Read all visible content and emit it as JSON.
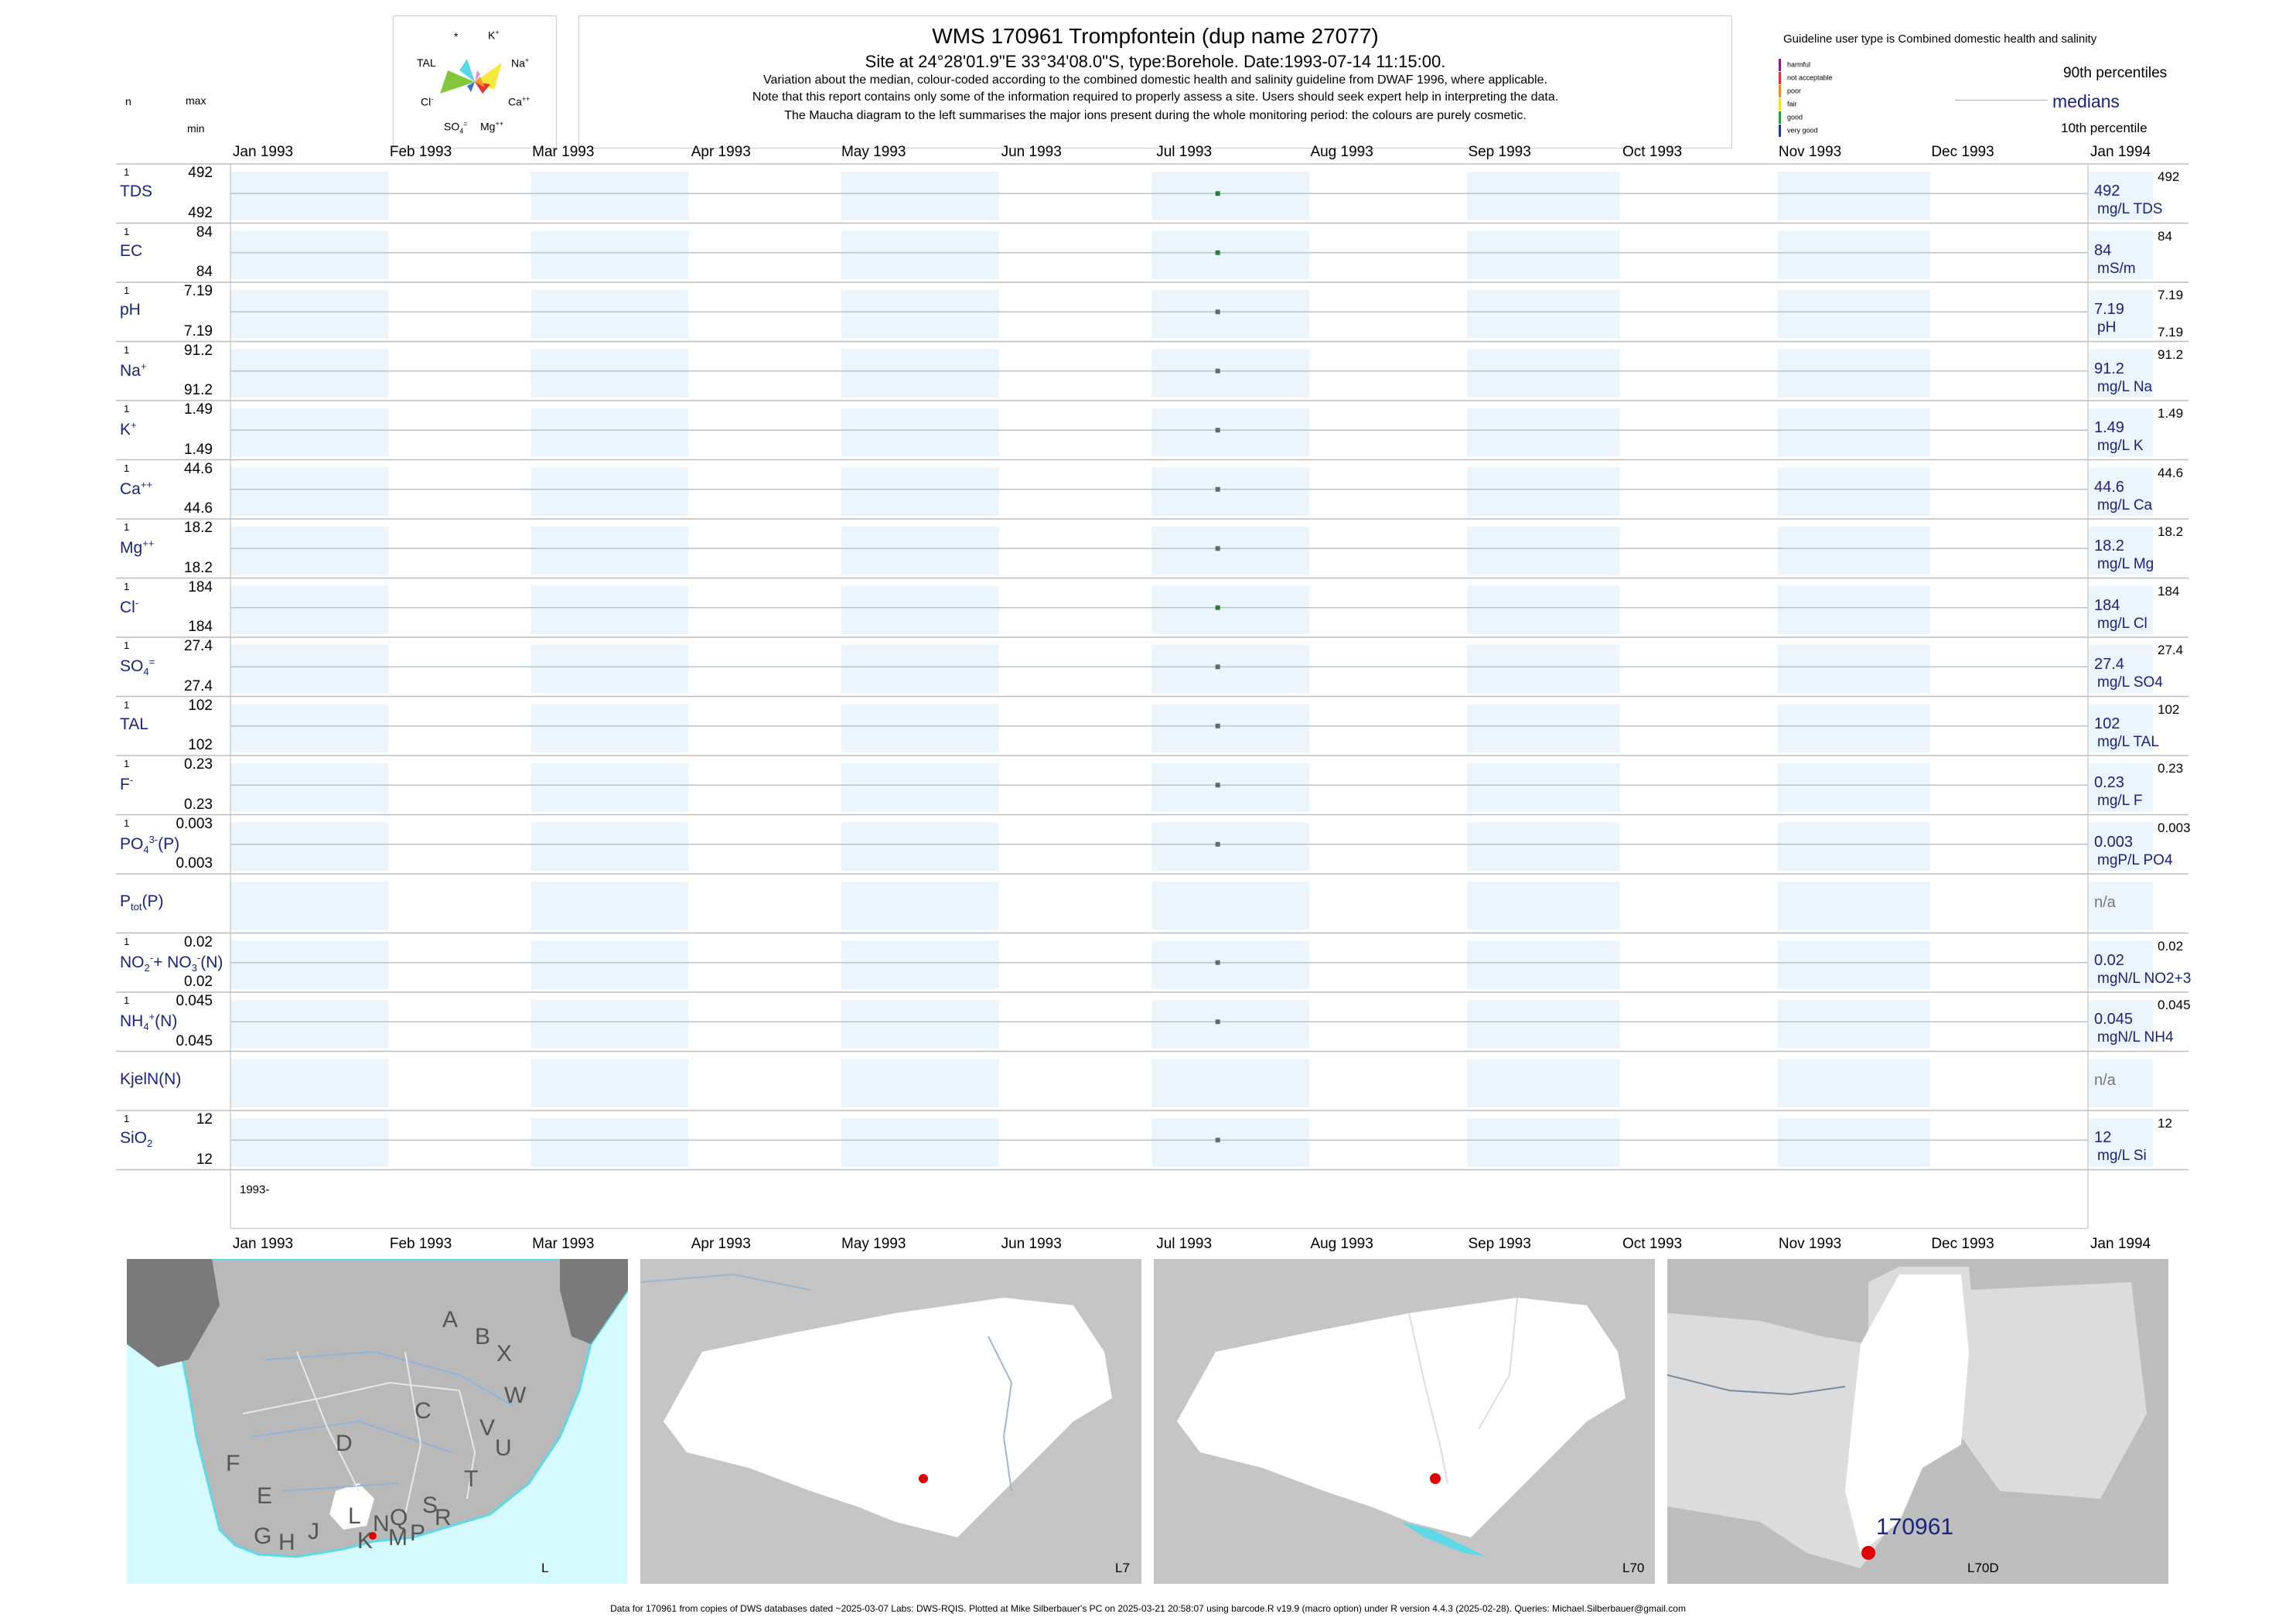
{
  "header": {
    "title": "WMS 170961  Trompfontein (dup name 27077)",
    "subtitle": "Site at 24°28'01.9\"E 33°34'08.0\"S, type:Borehole. Date:1993-07-14 11:15:00.",
    "note1": "Variation about the median,  colour-coded according to the combined domestic health and salinity guideline from DWAF 1996, where applicable.",
    "note2": "Note that this report contains only some of the information required to properly assess a site. Users should seek expert help in interpreting the data.",
    "note3": "The Maucha diagram to the left summarises the major ions present during the whole monitoring period: the colours are purely cosmetic."
  },
  "maucha": {
    "labels": {
      "top_left": "*",
      "k": "K",
      "k_sup": "+",
      "tal": "TAL",
      "na": "Na",
      "na_sup": "+",
      "cl": "Cl",
      "cl_sup": "-",
      "ca": "Ca",
      "ca_sup": "++",
      "so4": "SO",
      "so4_sub": "4",
      "so4_sup": "=",
      "mg": "Mg",
      "mg_sup": "++"
    },
    "colors": {
      "yellow": "#f5ea3b",
      "cyan": "#58d8e8",
      "green": "#84c63c",
      "orange": "#f39c2c",
      "red": "#e8322c",
      "blue": "#3b6fd8",
      "pink": "#ea8ad0"
    }
  },
  "legend": {
    "guideline_title": "Guideline user type is Combined domestic health and salinity",
    "categories": [
      {
        "label": "harmful",
        "color": "#8e1b8e"
      },
      {
        "label": "not acceptable",
        "color": "#e83030"
      },
      {
        "label": "poor",
        "color": "#f08a24"
      },
      {
        "label": "fair",
        "color": "#f4e22a"
      },
      {
        "label": "good",
        "color": "#2e9a40"
      },
      {
        "label": "very good",
        "color": "#1f3a9a"
      }
    ],
    "pct90": "90th percentiles",
    "medians": "medians",
    "pct10": "10th percentile"
  },
  "left_header": {
    "n": "n",
    "max": "max",
    "min": "min"
  },
  "chart_data": {
    "type": "scatter",
    "x_range": [
      "1993-01-01",
      "1994-01-01"
    ],
    "x_ticks": [
      "Jan 1993",
      "Feb 1993",
      "Mar 1993",
      "Apr 1993",
      "May 1993",
      "Jun 1993",
      "Jul 1993",
      "Aug 1993",
      "Sep 1993",
      "Oct 1993",
      "Nov 1993",
      "Dec 1993",
      "Jan 1994"
    ],
    "x_year_label": "1993-",
    "sample_date": "1993-07-14",
    "point_colors": {
      "good": "#2e7d32",
      "grey": "#5f6b73"
    },
    "rows": [
      {
        "key": "TDS",
        "label": "TDS",
        "sup": "",
        "sub": "",
        "n": "1",
        "max": "492",
        "min": "492",
        "median": "492",
        "unit": "mg/L TDS",
        "r_max": "492",
        "r_min": "",
        "color": "good"
      },
      {
        "key": "EC",
        "label": "EC",
        "sup": "",
        "sub": "",
        "n": "1",
        "max": "84",
        "min": "84",
        "median": "84",
        "unit": "mS/m",
        "r_max": "84",
        "r_min": "",
        "color": "good"
      },
      {
        "key": "pH",
        "label": "pH",
        "sup": "",
        "sub": "",
        "n": "1",
        "max": "7.19",
        "min": "7.19",
        "median": "7.19",
        "unit": "pH",
        "r_max": "7.19",
        "r_min": "7.19",
        "color": "grey"
      },
      {
        "key": "Na",
        "label": "Na",
        "sup": "+",
        "sub": "",
        "n": "1",
        "max": "91.2",
        "min": "91.2",
        "median": "91.2",
        "unit": "mg/L Na",
        "r_max": "91.2",
        "r_min": "",
        "color": "grey"
      },
      {
        "key": "K",
        "label": "K",
        "sup": "+",
        "sub": "",
        "n": "1",
        "max": "1.49",
        "min": "1.49",
        "median": "1.49",
        "unit": "mg/L K",
        "r_max": "1.49",
        "r_min": "",
        "color": "grey"
      },
      {
        "key": "Ca",
        "label": "Ca",
        "sup": "++",
        "sub": "",
        "n": "1",
        "max": "44.6",
        "min": "44.6",
        "median": "44.6",
        "unit": "mg/L Ca",
        "r_max": "44.6",
        "r_min": "",
        "color": "grey"
      },
      {
        "key": "Mg",
        "label": "Mg",
        "sup": "++",
        "sub": "",
        "n": "1",
        "max": "18.2",
        "min": "18.2",
        "median": "18.2",
        "unit": "mg/L Mg",
        "r_max": "18.2",
        "r_min": "",
        "color": "grey"
      },
      {
        "key": "Cl",
        "label": "Cl",
        "sup": "-",
        "sub": "",
        "n": "1",
        "max": "184",
        "min": "184",
        "median": "184",
        "unit": "mg/L Cl",
        "r_max": "184",
        "r_min": "",
        "color": "good"
      },
      {
        "key": "SO4",
        "label": "SO",
        "sup": "=",
        "sub": "4",
        "n": "1",
        "max": "27.4",
        "min": "27.4",
        "median": "27.4",
        "unit": "mg/L SO4",
        "r_max": "27.4",
        "r_min": "",
        "color": "grey"
      },
      {
        "key": "TAL",
        "label": "TAL",
        "sup": "",
        "sub": "",
        "n": "1",
        "max": "102",
        "min": "102",
        "median": "102",
        "unit": "mg/L TAL",
        "r_max": "102",
        "r_min": "",
        "color": "grey"
      },
      {
        "key": "F",
        "label": "F",
        "sup": "-",
        "sub": "",
        "n": "1",
        "max": "0.23",
        "min": "0.23",
        "median": "0.23",
        "unit": "mg/L F",
        "r_max": "0.23",
        "r_min": "",
        "color": "grey"
      },
      {
        "key": "PO4",
        "label": "PO",
        "sup": "3-",
        "sub": "4",
        "tail": "(P)",
        "n": "1",
        "max": "0.003",
        "min": "0.003",
        "median": "0.003",
        "unit": "mgP/L PO4",
        "r_max": "0.003",
        "r_min": "",
        "color": "grey"
      },
      {
        "key": "Ptot",
        "label": "P",
        "sup": "",
        "sub": "tot",
        "tail": "(P)",
        "n": "",
        "max": "",
        "min": "",
        "median": "n/a",
        "unit": "",
        "r_max": "",
        "r_min": "",
        "color": "none"
      },
      {
        "key": "NO23",
        "label": "NO",
        "sup": "-",
        "sub": "2",
        "tail": "+ NO",
        "sup2": "-",
        "sub2": "3",
        "tail2": "(N)",
        "n": "1",
        "max": "0.02",
        "min": "0.02",
        "median": "0.02",
        "unit": "mgN/L NO2+3",
        "r_max": "0.02",
        "r_min": "",
        "color": "grey"
      },
      {
        "key": "NH4",
        "label": "NH",
        "sup": "+",
        "sub": "4",
        "tail": "(N)",
        "n": "1",
        "max": "0.045",
        "min": "0.045",
        "median": "0.045",
        "unit": "mgN/L NH4",
        "r_max": "0.045",
        "r_min": "",
        "color": "grey"
      },
      {
        "key": "KjelN",
        "label": "KjelN(N)",
        "sup": "",
        "sub": "",
        "n": "",
        "max": "",
        "min": "",
        "median": "n/a",
        "unit": "",
        "r_max": "",
        "r_min": "",
        "color": "none"
      },
      {
        "key": "SiO2",
        "label": "SiO",
        "sup": "",
        "sub": "2",
        "n": "1",
        "max": "12",
        "min": "12",
        "median": "12",
        "unit": "mg/L Si",
        "r_max": "12",
        "r_min": "",
        "color": "grey"
      }
    ]
  },
  "maps": {
    "panel1": {
      "label": "L",
      "regions": [
        "A",
        "B",
        "X",
        "W",
        "C",
        "V",
        "U",
        "D",
        "T",
        "F",
        "E",
        "S",
        "R",
        "Q",
        "P",
        "N",
        "L",
        "M",
        "K",
        "J",
        "H",
        "G"
      ]
    },
    "panel2": {
      "label": "L7"
    },
    "panel3": {
      "label": "L70"
    },
    "panel4": {
      "label": "L70D",
      "site": "170961"
    },
    "colors": {
      "sea": "#d6fbff",
      "land": "#b9b9b9",
      "dark": "#7a7a7a",
      "highlight": "#ffffff",
      "site": "#e00000",
      "river": "#8fb3d9"
    }
  },
  "footer": "Data for 170961 from copies of DWS databases dated ~2025-03-07 Labs: DWS-RQIS. Plotted at Mike Silberbauer's PC on 2025-03-21 20:58:07 using barcode.R v19.9 (macro option) under R version 4.4.3 (2025-02-28). Queries: Michael.Silberbauer@gmail.com"
}
